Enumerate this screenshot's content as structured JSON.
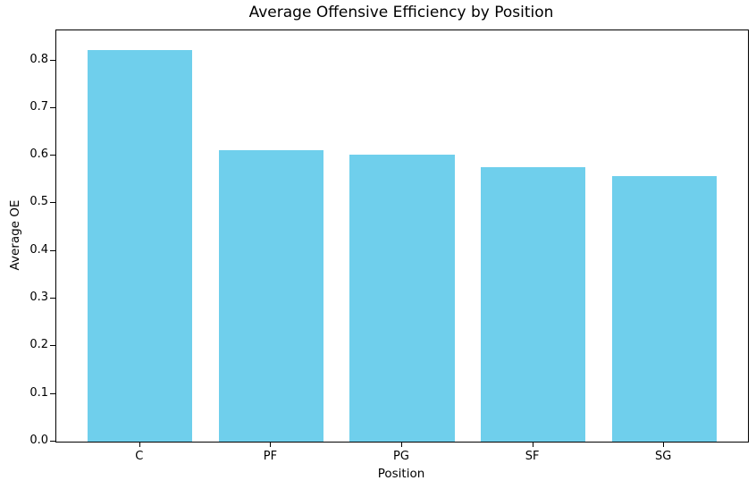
{
  "figure": {
    "background_color": "#ffffff",
    "axis_color": "#000000",
    "text_color": "#000000"
  },
  "chart_data": {
    "type": "bar",
    "title": "Average Offensive Efficiency by Position",
    "xlabel": "Position",
    "ylabel": "Average OE",
    "categories": [
      "C",
      "PF",
      "PG",
      "SF",
      "SG"
    ],
    "values": [
      0.822,
      0.611,
      0.602,
      0.576,
      0.557
    ],
    "bar_color": "#6fcfec",
    "ylim": [
      0,
      0.863
    ],
    "ytick_labels": [
      "0.0",
      "0.1",
      "0.2",
      "0.3",
      "0.4",
      "0.5",
      "0.6",
      "0.7",
      "0.8"
    ],
    "grid": false,
    "legend": "none",
    "bar_width_fraction": 0.8,
    "x_edge_margin": 0.64
  }
}
